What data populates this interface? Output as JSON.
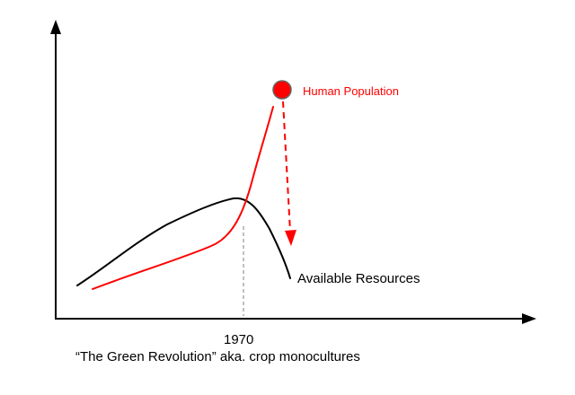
{
  "colors": {
    "population": "#ff0000",
    "resources": "#000000",
    "axis": "#000000",
    "marker_fill": "#ff0000",
    "marker_stroke": "#666666",
    "year_guide": "#808080",
    "background": "#ffffff"
  },
  "labels": {
    "population": "Human Population",
    "resources": "Available Resources",
    "year": "1970",
    "caption": "“The Green Revolution” aka. crop monocultures"
  },
  "icons": {
    "population_marker": "circle-marker-icon",
    "decline_arrow": "dashed-down-arrow-icon",
    "x_axis_arrow": "arrowhead-right-icon",
    "y_axis_arrow": "arrowhead-up-icon"
  }
}
